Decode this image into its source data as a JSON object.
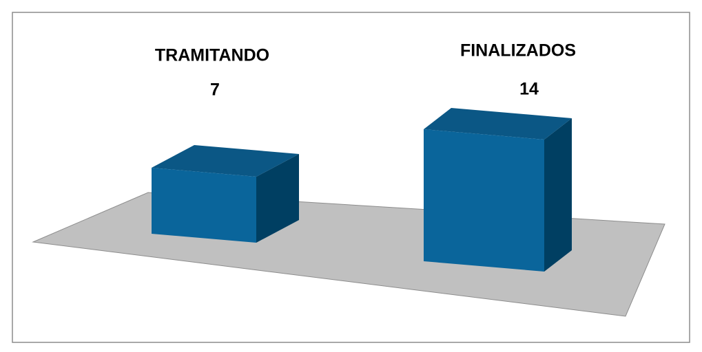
{
  "chart_data": {
    "type": "bar3d",
    "categories": [
      "TRAMITANDO",
      "FINALIZADOS"
    ],
    "values": [
      7,
      14
    ],
    "color": "#0a659b"
  }
}
